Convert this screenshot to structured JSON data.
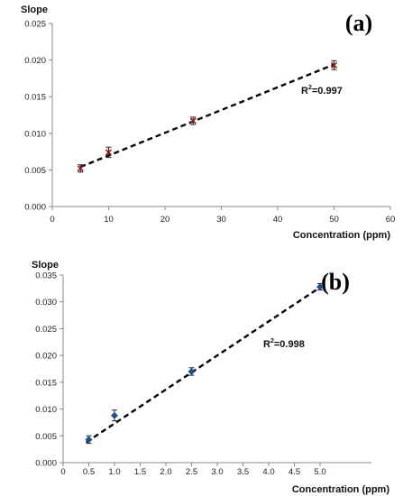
{
  "chart_data": [
    {
      "type": "scatter",
      "panel_label": "(a)",
      "ylabel": "Slope",
      "xlabel": "Concentration (ppm)",
      "xlim": [
        0,
        60
      ],
      "ylim": [
        0,
        0.025
      ],
      "xticks": [
        "0",
        "10",
        "20",
        "30",
        "40",
        "50",
        "60"
      ],
      "yticks": [
        "0.000",
        "0.005",
        "0.010",
        "0.015",
        "0.020",
        "0.025"
      ],
      "x": [
        5,
        10,
        25,
        50
      ],
      "y": [
        0.0052,
        0.0074,
        0.0117,
        0.0193
      ],
      "yerr": [
        0.0005,
        0.0007,
        0.0005,
        0.0006
      ],
      "marker_color": "#8b1a1a",
      "fit": {
        "x": [
          5,
          50
        ],
        "y": [
          0.0054,
          0.0194
        ],
        "style": "dashed"
      },
      "annotation": {
        "text": "R",
        "sup": "2",
        "rest": "=0.997"
      }
    },
    {
      "type": "scatter",
      "panel_label": "(b)",
      "ylabel": "Slope",
      "xlabel": "Concentration (ppm)",
      "xlim": [
        0,
        6
      ],
      "ylim": [
        0,
        0.035
      ],
      "xticks": [
        "0",
        "0.5",
        "1.0",
        "1.5",
        "2.0",
        "2.5",
        "3.0",
        "3.5",
        "4.0",
        "4.5",
        "5.0"
      ],
      "yticks": [
        "0.000",
        "0.005",
        "0.010",
        "0.015",
        "0.020",
        "0.025",
        "0.030",
        "0.035"
      ],
      "x": [
        0.5,
        1.0,
        2.5,
        5.0
      ],
      "y": [
        0.0043,
        0.0088,
        0.017,
        0.0328
      ],
      "yerr": [
        0.0007,
        0.001,
        0.0007,
        0.0006
      ],
      "marker_color": "#1f4e8c",
      "fit": {
        "x": [
          0.45,
          5.0
        ],
        "y": [
          0.0038,
          0.0327
        ],
        "style": "dashed"
      },
      "annotation": {
        "text": "R",
        "sup": "2",
        "rest": "=0.998"
      }
    }
  ]
}
